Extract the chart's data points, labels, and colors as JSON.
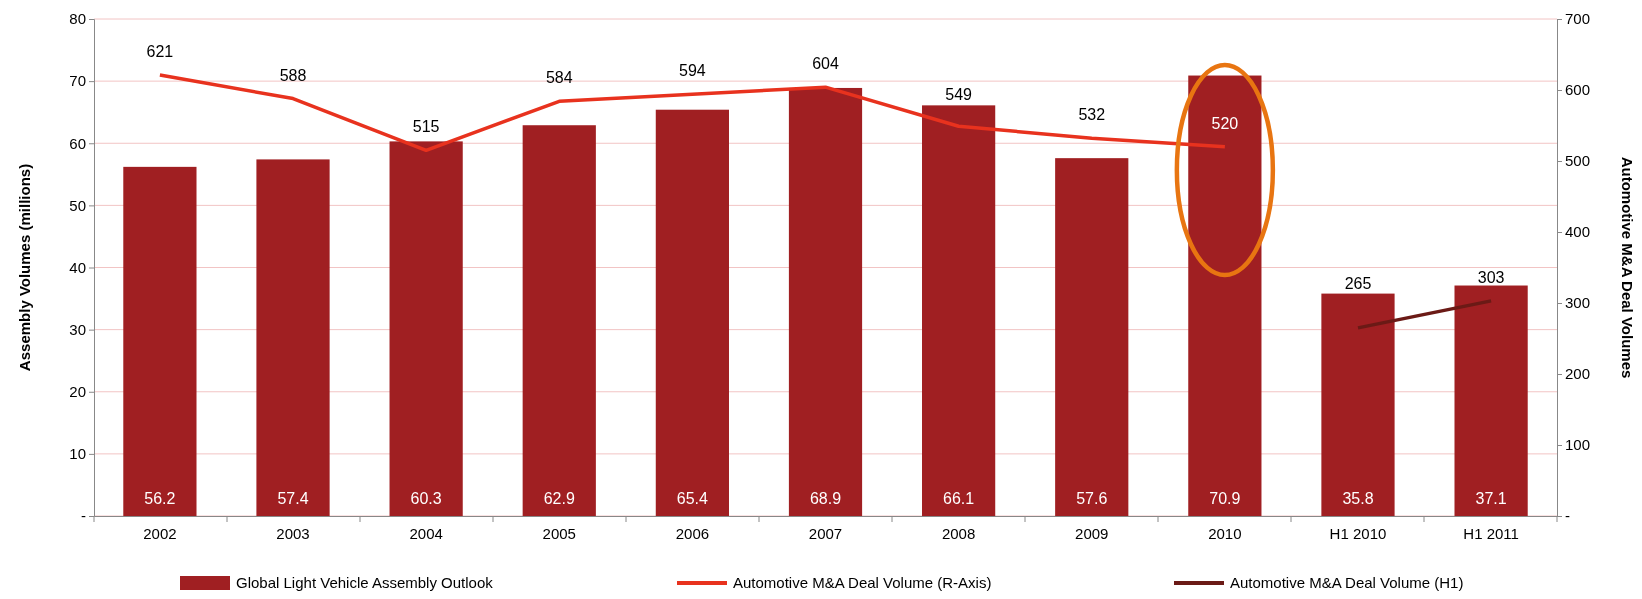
{
  "chart_data": {
    "type": "bar",
    "categories": [
      "2002",
      "2003",
      "2004",
      "2005",
      "2006",
      "2007",
      "2008",
      "2009",
      "2010",
      "H1 2010",
      "H1 2011"
    ],
    "ylabel": "Assembly Volumes (millions)",
    "y2label": "Automotive M&A Deal Volumes",
    "ylim": [
      0,
      80
    ],
    "yticks": [
      {
        "value": 0,
        "label": "-"
      },
      10,
      20,
      30,
      40,
      50,
      60,
      70,
      80
    ],
    "y2lim": [
      0,
      700
    ],
    "y2ticks": [
      {
        "value": 0,
        "label": "-"
      },
      100,
      200,
      300,
      400,
      500,
      600,
      700
    ],
    "grid": "y",
    "legend": "bottom",
    "data_labels": true,
    "line_style": "solid",
    "marker": "none",
    "series": [
      {
        "name": "Global Light Vehicle Assembly Outlook",
        "color": "#a01f22",
        "values": [
          56.2,
          57.4,
          60.3,
          62.9,
          65.4,
          68.9,
          66.1,
          57.6,
          70.9,
          35.8,
          37.1
        ]
      },
      {
        "name": "Automotive M&A Deal Volume (R-Axis)",
        "type": "line",
        "axis": "y2",
        "color": "#e8321e",
        "values": [
          621,
          588,
          515,
          584,
          594,
          604,
          549,
          532,
          520,
          null,
          null
        ]
      },
      {
        "name": "Automotive M&A Deal Volume (H1)",
        "type": "line",
        "axis": "y2",
        "color": "#6b1a16",
        "values": [
          null,
          null,
          null,
          null,
          null,
          null,
          null,
          null,
          null,
          265,
          303
        ]
      }
    ]
  }
}
